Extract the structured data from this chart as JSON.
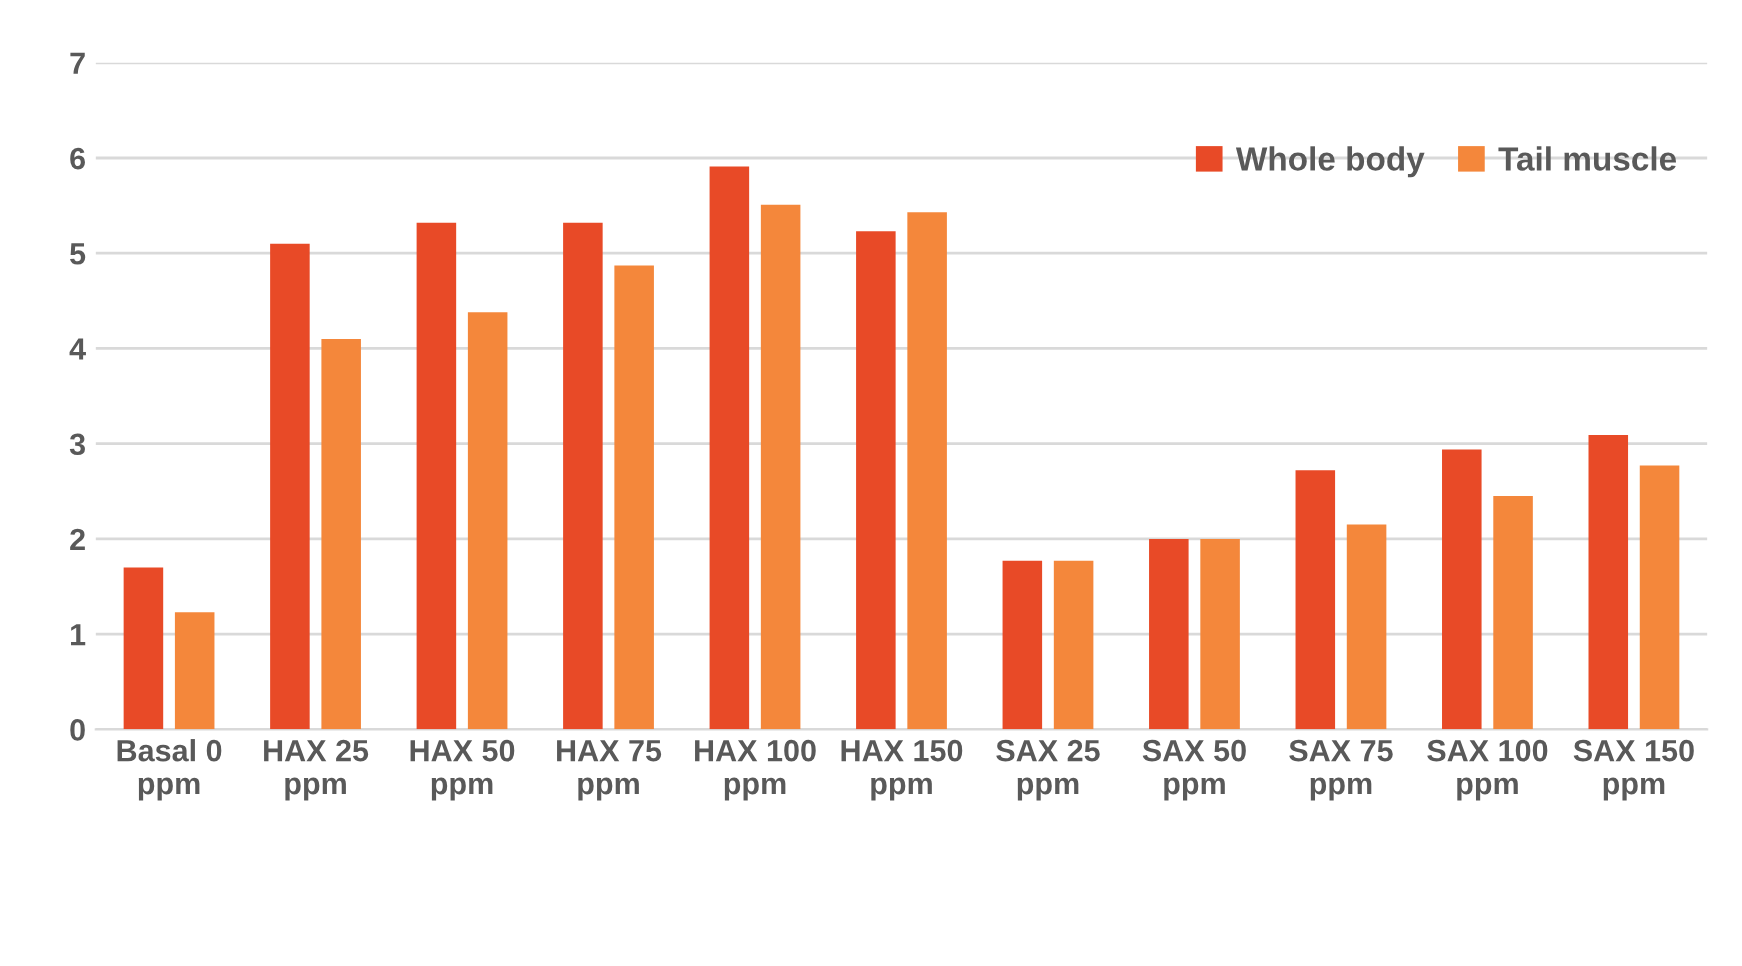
{
  "chart_data": {
    "type": "bar",
    "categories": [
      "Basal 0 ppm",
      "HAX 25 ppm",
      "HAX 50 ppm",
      "HAX 75 ppm",
      "HAX 100 ppm",
      "HAX 150 ppm",
      "SAX 25 ppm",
      "SAX 50 ppm",
      "SAX 75 ppm",
      "SAX 100 ppm",
      "SAX 150 ppm"
    ],
    "series": [
      {
        "name": "Whole body",
        "color": "#e84a27",
        "values": [
          1.7,
          5.1,
          5.32,
          5.32,
          5.91,
          5.23,
          1.77,
          2.0,
          2.72,
          2.94,
          3.09
        ]
      },
      {
        "name": "Tail muscle",
        "color": "#f4873b",
        "values": [
          1.23,
          4.1,
          4.38,
          4.87,
          5.51,
          5.43,
          1.77,
          2.0,
          2.15,
          2.45,
          2.77
        ]
      }
    ],
    "ylim": [
      0,
      7
    ],
    "yticks": [
      0,
      1,
      2,
      3,
      4,
      5,
      6,
      7
    ],
    "grid": "y",
    "legend": "top right"
  }
}
